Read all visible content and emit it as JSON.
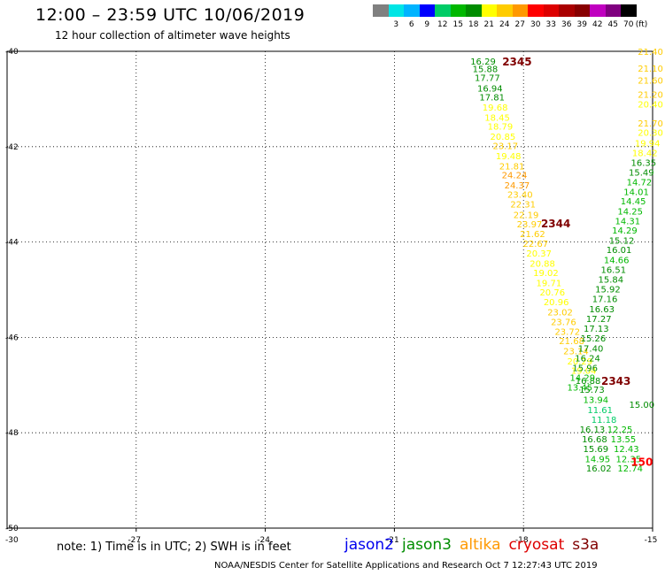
{
  "header": {
    "title": "12:00 – 23:59 UTC 10/06/2019",
    "subtitle": "12 hour collection of altimeter wave heights"
  },
  "legend": {
    "unit_label": "(ft)",
    "bins": [
      {
        "label": "",
        "color": "#808080"
      },
      {
        "label": "3",
        "color": "#00e5e5"
      },
      {
        "label": "6",
        "color": "#00b4ff"
      },
      {
        "label": "9",
        "color": "#0000ff"
      },
      {
        "label": "12",
        "color": "#00cc66"
      },
      {
        "label": "15",
        "color": "#00b800"
      },
      {
        "label": "18",
        "color": "#008c00"
      },
      {
        "label": "21",
        "color": "#ffff00"
      },
      {
        "label": "24",
        "color": "#ffcc00"
      },
      {
        "label": "27",
        "color": "#ff9900"
      },
      {
        "label": "30",
        "color": "#ff0000"
      },
      {
        "label": "33",
        "color": "#dd0000"
      },
      {
        "label": "36",
        "color": "#aa0000"
      },
      {
        "label": "39",
        "color": "#880000"
      },
      {
        "label": "42",
        "color": "#c000c0"
      },
      {
        "label": "45",
        "color": "#800080"
      },
      {
        "label": "70",
        "color": "#000000"
      }
    ]
  },
  "chart_data": {
    "type": "scatter",
    "xlim": [
      -30,
      -15
    ],
    "ylim": [
      -50,
      -40
    ],
    "x_ticks": [
      -27,
      -24,
      -21,
      -18,
      -15
    ],
    "x_tick_labels": [
      "-27",
      "-24",
      "-21",
      "-18",
      "-15"
    ],
    "y_ticks": [
      -40,
      -42,
      -44,
      -46,
      -48,
      -50
    ],
    "y_tick_labels": [
      "-40",
      "-42",
      "-44",
      "-46",
      "-48",
      "-50"
    ],
    "corner_label": "-30",
    "grid": true,
    "pass_labels": [
      {
        "text": "2345",
        "lon": -18.15,
        "lat": -40.2,
        "color": "#800000"
      },
      {
        "text": "2344",
        "lon": -17.25,
        "lat": -43.6,
        "color": "#800000"
      },
      {
        "text": "2343",
        "lon": -15.85,
        "lat": -46.9,
        "color": "#800000"
      },
      {
        "text": "150",
        "lon": -15.25,
        "lat": -48.6,
        "color": "#ff0000"
      }
    ],
    "series": [
      {
        "name": "jason3",
        "points": [
          {
            "lon": -18.94,
            "lat": -40.2,
            "swh": 16.29
          },
          {
            "lon": -18.89,
            "lat": -40.36,
            "swh": 15.88
          },
          {
            "lon": -18.84,
            "lat": -40.55,
            "swh": 17.77
          },
          {
            "lon": -18.78,
            "lat": -40.77,
            "swh": 16.94
          },
          {
            "lon": -18.73,
            "lat": -40.96,
            "swh": 17.81
          },
          {
            "lon": -18.66,
            "lat": -41.17,
            "swh": 19.68
          },
          {
            "lon": -18.61,
            "lat": -41.38,
            "swh": 18.45
          },
          {
            "lon": -18.54,
            "lat": -41.57,
            "swh": 18.79
          },
          {
            "lon": -18.48,
            "lat": -41.78,
            "swh": 20.85
          },
          {
            "lon": -18.42,
            "lat": -41.98,
            "swh": 23.17
          },
          {
            "lon": -18.35,
            "lat": -42.19,
            "swh": 19.48
          },
          {
            "lon": -18.27,
            "lat": -42.4,
            "swh": 21.81
          },
          {
            "lon": -18.21,
            "lat": -42.59,
            "swh": 24.24
          },
          {
            "lon": -18.15,
            "lat": -42.8,
            "swh": 24.37
          },
          {
            "lon": -18.08,
            "lat": -43.0,
            "swh": 23.4
          },
          {
            "lon": -18.01,
            "lat": -43.2,
            "swh": 22.31
          },
          {
            "lon": -17.94,
            "lat": -43.42,
            "swh": 22.19
          },
          {
            "lon": -17.86,
            "lat": -43.62,
            "swh": 23.97
          },
          {
            "lon": -17.79,
            "lat": -43.82,
            "swh": 21.62
          },
          {
            "lon": -17.72,
            "lat": -44.03,
            "swh": 22.67
          },
          {
            "lon": -17.64,
            "lat": -44.23,
            "swh": 20.37
          },
          {
            "lon": -17.56,
            "lat": -44.44,
            "swh": 20.88
          },
          {
            "lon": -17.48,
            "lat": -44.64,
            "swh": 19.02
          },
          {
            "lon": -17.41,
            "lat": -44.85,
            "swh": 19.71
          },
          {
            "lon": -17.33,
            "lat": -45.05,
            "swh": 20.76
          },
          {
            "lon": -17.24,
            "lat": -45.25,
            "swh": 20.96
          },
          {
            "lon": -17.15,
            "lat": -45.46,
            "swh": 23.02
          },
          {
            "lon": -17.07,
            "lat": -45.67,
            "swh": 23.76
          },
          {
            "lon": -16.98,
            "lat": -45.87,
            "swh": 23.72
          },
          {
            "lon": -16.88,
            "lat": -46.07,
            "swh": 21.68
          },
          {
            "lon": -16.78,
            "lat": -46.28,
            "swh": 23.14
          },
          {
            "lon": -16.69,
            "lat": -46.49,
            "swh": 20.29
          },
          {
            "lon": -16.6,
            "lat": -46.69,
            "swh": 19.04
          },
          {
            "lon": -16.5,
            "lat": -46.9,
            "swh": 16.88
          },
          {
            "lon": -16.41,
            "lat": -47.09,
            "swh": 15.73
          },
          {
            "lon": -16.32,
            "lat": -47.3,
            "swh": 13.94
          },
          {
            "lon": -16.22,
            "lat": -47.51,
            "swh": 11.61
          },
          {
            "lon": -16.13,
            "lat": -47.72,
            "swh": 11.18
          },
          {
            "lon": -16.4,
            "lat": -47.92,
            "swh": 16.13
          },
          {
            "lon": -16.35,
            "lat": -48.13,
            "swh": 16.68
          },
          {
            "lon": -16.32,
            "lat": -48.33,
            "swh": 15.69
          },
          {
            "lon": -16.28,
            "lat": -48.54,
            "swh": 14.95
          },
          {
            "lon": -16.25,
            "lat": -48.74,
            "swh": 16.02
          }
        ]
      },
      {
        "name": "altika",
        "points": [
          {
            "lon": -15.05,
            "lat": -40.0,
            "swh": 21.4
          },
          {
            "lon": -15.05,
            "lat": -40.35,
            "swh": 21.1
          },
          {
            "lon": -15.05,
            "lat": -40.6,
            "swh": 21.6
          },
          {
            "lon": -15.05,
            "lat": -40.9,
            "swh": 21.2
          },
          {
            "lon": -15.05,
            "lat": -41.1,
            "swh": 20.4
          },
          {
            "lon": -15.05,
            "lat": -41.5,
            "swh": 21.7
          },
          {
            "lon": -15.05,
            "lat": -41.7,
            "swh": 20.3
          },
          {
            "lon": -15.12,
            "lat": -41.92,
            "swh": 19.94
          },
          {
            "lon": -15.18,
            "lat": -42.12,
            "swh": 18.42
          },
          {
            "lon": -15.21,
            "lat": -42.33,
            "swh": 16.35
          },
          {
            "lon": -15.26,
            "lat": -42.53,
            "swh": 15.49
          },
          {
            "lon": -15.31,
            "lat": -42.74,
            "swh": 14.72
          },
          {
            "lon": -15.38,
            "lat": -42.94,
            "swh": 14.01
          },
          {
            "lon": -15.45,
            "lat": -43.14,
            "swh": 14.45
          },
          {
            "lon": -15.52,
            "lat": -43.35,
            "swh": 14.25
          },
          {
            "lon": -15.58,
            "lat": -43.55,
            "swh": 14.31
          },
          {
            "lon": -15.65,
            "lat": -43.75,
            "swh": 14.29
          },
          {
            "lon": -15.72,
            "lat": -43.96,
            "swh": 15.12
          },
          {
            "lon": -15.78,
            "lat": -44.16,
            "swh": 16.01
          },
          {
            "lon": -15.84,
            "lat": -44.37,
            "swh": 14.66
          },
          {
            "lon": -15.91,
            "lat": -44.57,
            "swh": 16.51
          },
          {
            "lon": -15.97,
            "lat": -44.78,
            "swh": 15.84
          },
          {
            "lon": -16.04,
            "lat": -44.98,
            "swh": 15.92
          },
          {
            "lon": -16.11,
            "lat": -45.19,
            "swh": 17.16
          },
          {
            "lon": -16.18,
            "lat": -45.4,
            "swh": 16.63
          },
          {
            "lon": -16.25,
            "lat": -45.6,
            "swh": 17.27
          },
          {
            "lon": -16.31,
            "lat": -45.81,
            "swh": 17.13
          },
          {
            "lon": -16.38,
            "lat": -46.01,
            "swh": 15.26
          },
          {
            "lon": -16.44,
            "lat": -46.22,
            "swh": 17.4
          },
          {
            "lon": -16.51,
            "lat": -46.43,
            "swh": 16.24
          },
          {
            "lon": -16.57,
            "lat": -46.63,
            "swh": 15.96
          },
          {
            "lon": -16.63,
            "lat": -46.84,
            "swh": 14.29
          },
          {
            "lon": -16.69,
            "lat": -47.04,
            "swh": 13.45
          },
          {
            "lon": -15.76,
            "lat": -47.92,
            "swh": 12.25
          },
          {
            "lon": -15.68,
            "lat": -48.13,
            "swh": 13.55
          },
          {
            "lon": -15.61,
            "lat": -48.33,
            "swh": 12.43
          },
          {
            "lon": -15.56,
            "lat": -48.54,
            "swh": 12.35
          },
          {
            "lon": -15.52,
            "lat": -48.74,
            "swh": 12.74
          }
        ]
      },
      {
        "name": "cryosat",
        "points": [
          {
            "lon": -15.25,
            "lat": -47.4,
            "swh": 15.0
          }
        ]
      }
    ]
  },
  "footer": {
    "note": "note: 1) Time is in UTC; 2) SWH is in feet",
    "satellites": [
      {
        "name": "jason2",
        "color": "#0000ee"
      },
      {
        "name": "jason3",
        "color": "#008c00"
      },
      {
        "name": "altika",
        "color": "#ff9900"
      },
      {
        "name": "cryosat",
        "color": "#dd0000"
      },
      {
        "name": "s3a",
        "color": "#800000"
      }
    ],
    "credit": "NOAA/NESDIS Center for Satellite Applications and Research    Oct  7 12:27:43 UTC 2019"
  }
}
